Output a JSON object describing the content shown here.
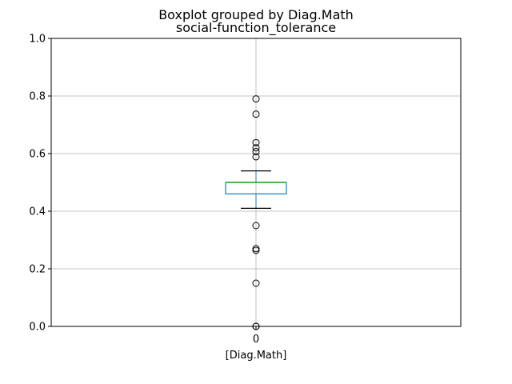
{
  "chart_data": {
    "type": "box",
    "title": "Boxplot grouped by Diag.Math",
    "subtitle": "social-function_tolerance",
    "xlabel": "[Diag.Math]",
    "ylabel": "",
    "categories": [
      "0"
    ],
    "ylim": [
      0,
      1.0
    ],
    "yticks": [
      "0.0",
      "0.2",
      "0.4",
      "0.6",
      "0.8",
      "1.0"
    ],
    "grid": true,
    "series": [
      {
        "category": "0",
        "whisker_low": 0.41,
        "q1": 0.46,
        "median": 0.5,
        "q3": 0.5,
        "whisker_high": 0.54,
        "outliers": [
          0.79,
          0.737,
          0.638,
          0.62,
          0.607,
          0.589,
          0.35,
          0.27,
          0.264,
          0.15,
          0.0,
          0.0
        ]
      }
    ],
    "colors": {
      "box": "#1f77b4",
      "median": "#2ca02c",
      "whisker": "#000000",
      "grid": "#b0b0b0"
    }
  }
}
